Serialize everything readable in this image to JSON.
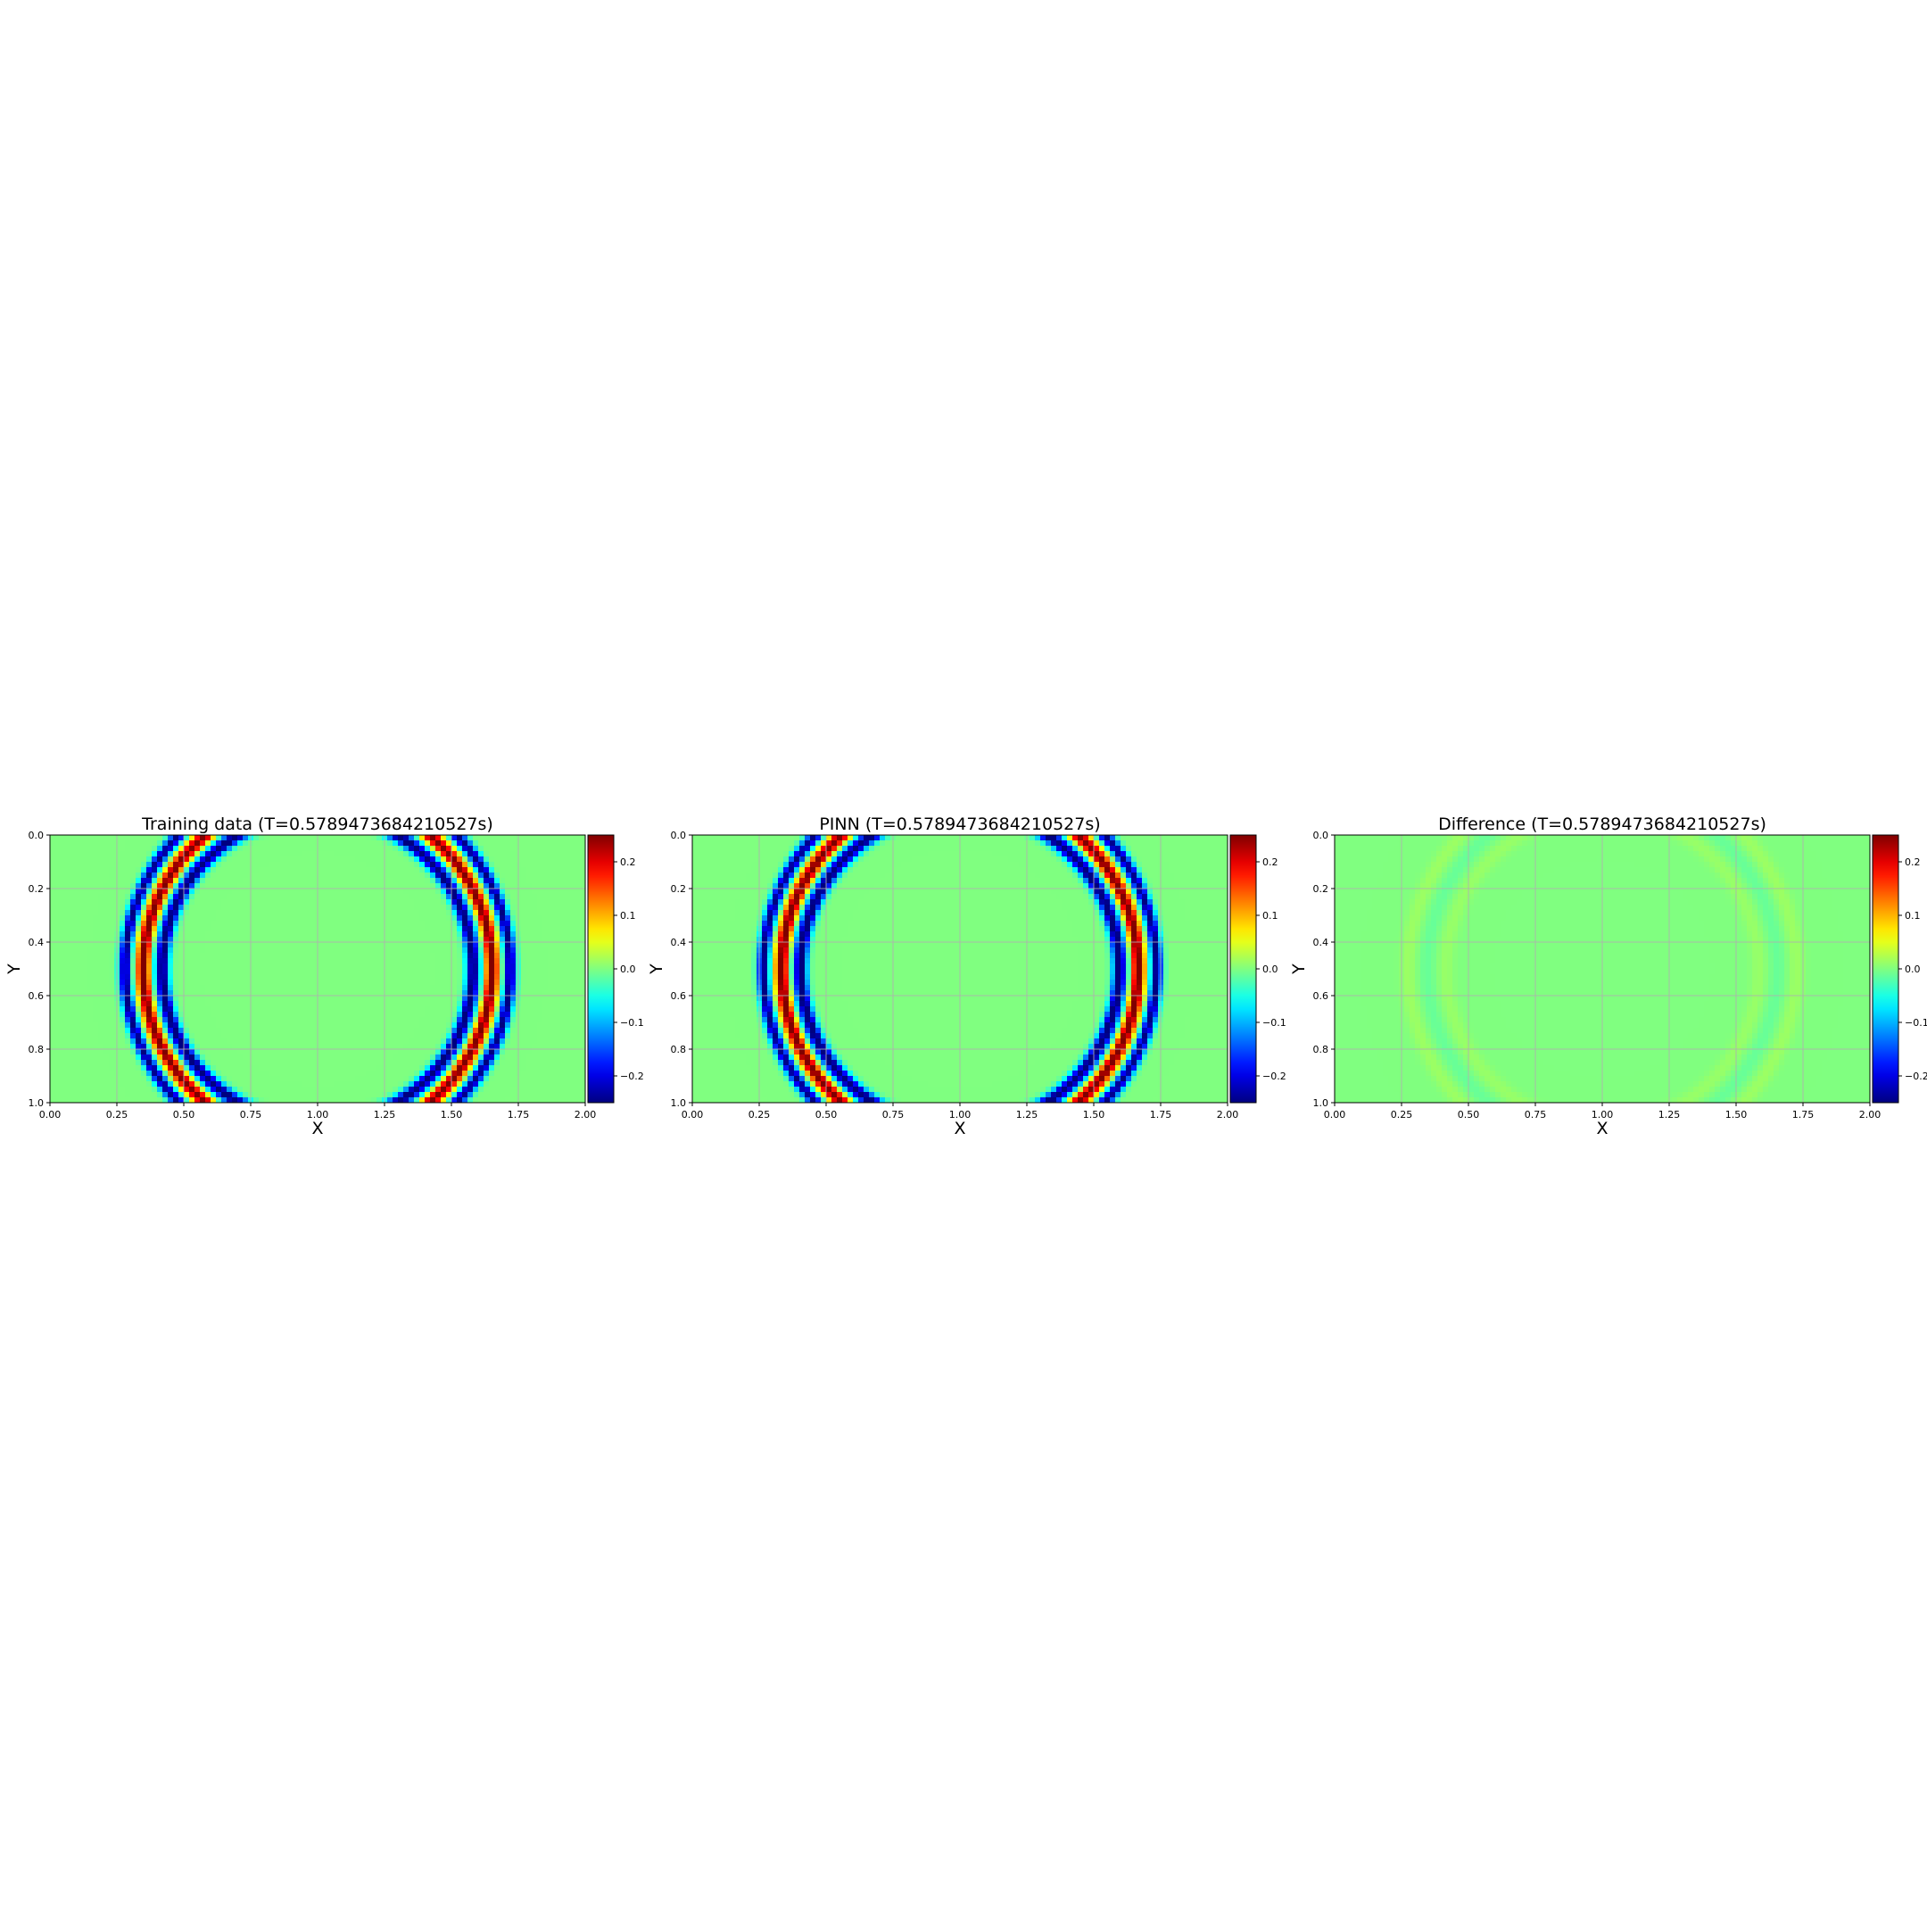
{
  "chart_data": [
    {
      "type": "heatmap",
      "title": "Training data (T=0.5789473684210527s)",
      "xlabel": "X",
      "ylabel": "Y",
      "xlim": [
        0,
        2
      ],
      "ylim": [
        1,
        0
      ],
      "x_ticks": [
        "0.00",
        "0.25",
        "0.50",
        "0.75",
        "1.00",
        "1.25",
        "1.50",
        "1.75",
        "2.00"
      ],
      "y_ticks": [
        "0.0",
        "0.2",
        "0.4",
        "0.6",
        "0.8",
        "1.0"
      ],
      "grid": true,
      "field": {
        "center": [
          1.0,
          0.5
        ],
        "rings": [
          {
            "radius": 0.58,
            "width": 0.024,
            "amplitude": -0.26
          },
          {
            "radius": 0.65,
            "width": 0.026,
            "amplitude": 0.27
          },
          {
            "radius": 0.72,
            "width": 0.022,
            "amplitude": -0.25
          },
          {
            "radius": 0.62,
            "width": 0.03,
            "amplitude": -0.04
          }
        ]
      },
      "colorbar": {
        "cmap": "jet",
        "vmin": -0.25,
        "vmax": 0.25,
        "ticks": [
          "−0.2",
          "−0.1",
          "0.0",
          "0.1",
          "0.2"
        ],
        "tick_values": [
          -0.2,
          -0.1,
          0.0,
          0.1,
          0.2
        ]
      }
    },
    {
      "type": "heatmap",
      "title": "PINN (T=0.5789473684210527s)",
      "xlabel": "X",
      "ylabel": "Y",
      "xlim": [
        0,
        2
      ],
      "ylim": [
        1,
        0
      ],
      "x_ticks": [
        "0.00",
        "0.25",
        "0.50",
        "0.75",
        "1.00",
        "1.25",
        "1.50",
        "1.75",
        "2.00"
      ],
      "y_ticks": [
        "0.0",
        "0.2",
        "0.4",
        "0.6",
        "0.8",
        "1.0"
      ],
      "grid": true,
      "field": {
        "center": [
          1.0,
          0.5
        ],
        "rings": [
          {
            "radius": 0.595,
            "width": 0.024,
            "amplitude": -0.26
          },
          {
            "radius": 0.665,
            "width": 0.026,
            "amplitude": 0.27
          },
          {
            "radius": 0.735,
            "width": 0.022,
            "amplitude": -0.25
          },
          {
            "radius": 0.63,
            "width": 0.03,
            "amplitude": -0.04
          }
        ]
      },
      "colorbar": {
        "cmap": "jet",
        "vmin": -0.25,
        "vmax": 0.25,
        "ticks": [
          "−0.2",
          "−0.1",
          "0.0",
          "0.1",
          "0.2"
        ],
        "tick_values": [
          -0.2,
          -0.1,
          0.0,
          0.1,
          0.2
        ]
      }
    },
    {
      "type": "heatmap",
      "title": "Difference (T=0.5789473684210527s)",
      "xlabel": "X",
      "ylabel": "Y",
      "xlim": [
        0,
        2
      ],
      "ylim": [
        1,
        0
      ],
      "x_ticks": [
        "0.00",
        "0.25",
        "0.50",
        "0.75",
        "1.00",
        "1.25",
        "1.50",
        "1.75",
        "2.00"
      ],
      "y_ticks": [
        "0.0",
        "0.2",
        "0.4",
        "0.6",
        "0.8",
        "1.0"
      ],
      "grid": true,
      "field": {
        "center": [
          1.0,
          0.5
        ],
        "rings": [
          {
            "radius": 0.585,
            "width": 0.03,
            "amplitude": 0.012
          },
          {
            "radius": 0.655,
            "width": 0.03,
            "amplitude": -0.012
          },
          {
            "radius": 0.725,
            "width": 0.03,
            "amplitude": 0.014
          }
        ]
      },
      "colorbar": {
        "cmap": "jet",
        "vmin": -0.25,
        "vmax": 0.25,
        "ticks": [
          "−0.2",
          "−0.1",
          "0.0",
          "0.1",
          "0.2"
        ],
        "tick_values": [
          -0.2,
          -0.1,
          0.0,
          0.1,
          0.2
        ]
      }
    }
  ]
}
